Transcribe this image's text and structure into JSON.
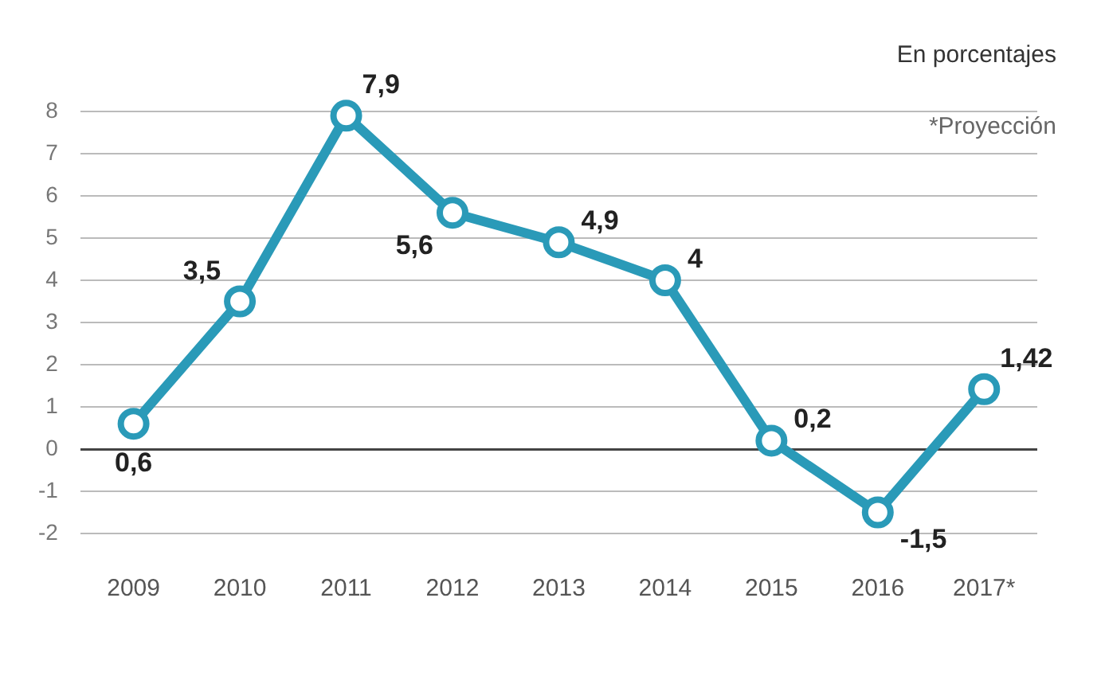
{
  "chart_data": {
    "type": "line",
    "categories": [
      "2009",
      "2010",
      "2011",
      "2012",
      "2013",
      "2014",
      "2015",
      "2016",
      "2017*"
    ],
    "series": [
      {
        "color": "#2a9ab8",
        "values": [
          0.6,
          3.5,
          7.9,
          5.6,
          4.9,
          4,
          0.2,
          -1.5,
          1.42
        ],
        "value_labels": [
          "0,6",
          "3,5",
          "7,9",
          "5,6",
          "4,9",
          "4",
          "0,2",
          "-1,5",
          "1,42"
        ]
      }
    ],
    "ylim": [
      -2,
      8
    ],
    "yticks": [
      -2,
      -1,
      0,
      1,
      2,
      3,
      4,
      5,
      6,
      7,
      8
    ],
    "grid": "y",
    "marker": "circle",
    "legend": false,
    "annotations": [
      "En porcentajes",
      "*Proyección"
    ]
  }
}
